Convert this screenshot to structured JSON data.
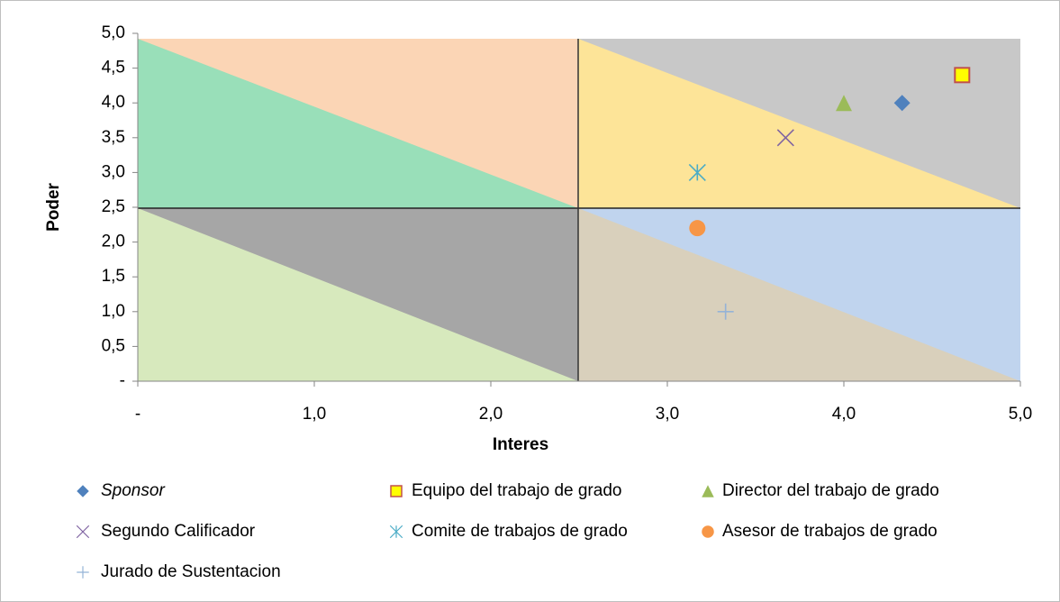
{
  "chart_data": {
    "type": "scatter",
    "xlabel": "Interes",
    "ylabel": "Poder",
    "xlim": [
      0,
      5
    ],
    "ylim": [
      0,
      5
    ],
    "xticks": [
      {
        "value": 0,
        "label": "-"
      },
      {
        "value": 1,
        "label": "1,0"
      },
      {
        "value": 2,
        "label": "2,0"
      },
      {
        "value": 3,
        "label": "3,0"
      },
      {
        "value": 4,
        "label": "4,0"
      },
      {
        "value": 5,
        "label": "5,0"
      }
    ],
    "yticks": [
      {
        "value": 0,
        "label": "-"
      },
      {
        "value": 0.5,
        "label": "0,5"
      },
      {
        "value": 1,
        "label": "1,0"
      },
      {
        "value": 1.5,
        "label": "1,5"
      },
      {
        "value": 2,
        "label": "2,0"
      },
      {
        "value": 2.5,
        "label": "2,5"
      },
      {
        "value": 3,
        "label": "3,0"
      },
      {
        "value": 3.5,
        "label": "3,5"
      },
      {
        "value": 4,
        "label": "4,0"
      },
      {
        "value": 4.5,
        "label": "4,5"
      },
      {
        "value": 5,
        "label": "5,0"
      }
    ],
    "series": [
      {
        "name": "Sponsor",
        "color": "#4f81bd",
        "marker": "diamond",
        "x": [
          4.33
        ],
        "y": [
          4.0
        ]
      },
      {
        "name": "Equipo del trabajo de grado",
        "color": "#c0504d",
        "marker": "square",
        "x": [
          4.67
        ],
        "y": [
          4.4
        ]
      },
      {
        "name": "Director del trabajo de grado",
        "color": "#9bbb59",
        "marker": "triangle",
        "x": [
          4.0
        ],
        "y": [
          4.0
        ]
      },
      {
        "name": "Segundo Calificador",
        "color": "#8064a2",
        "marker": "x",
        "x": [
          3.67
        ],
        "y": [
          3.5
        ]
      },
      {
        "name": "Comite de trabajos de grado",
        "color": "#4bacc6",
        "marker": "star",
        "x": [
          3.17
        ],
        "y": [
          3.0
        ]
      },
      {
        "name": "Asesor de trabajos de grado",
        "color": "#f79646",
        "marker": "circle",
        "x": [
          3.17
        ],
        "y": [
          2.2
        ]
      },
      {
        "name": "Jurado de Sustentacion",
        "color": "#95b3d7",
        "marker": "plus",
        "x": [
          3.33
        ],
        "y": [
          1.0
        ]
      }
    ]
  }
}
